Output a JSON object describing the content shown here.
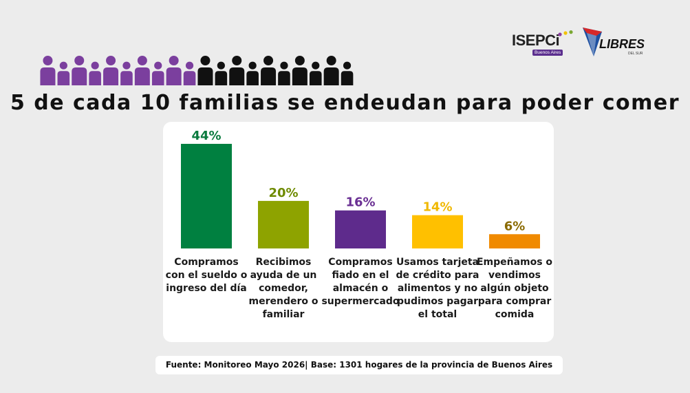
{
  "header": {
    "title": "5 de cada 10 familias se endeudan para poder comer",
    "people_icons": {
      "total": 20,
      "highlighted": 10,
      "highlight_color": "#7b3f9e",
      "base_color": "#111111"
    }
  },
  "logos": {
    "isepci": {
      "name": "ISEPCi",
      "subtitle": "Buenos Aires",
      "colors": [
        "#8a3fa0",
        "#f2c200",
        "#7aa832"
      ]
    },
    "libres": {
      "name": "LIBRES",
      "subtitle": "DEL SUR",
      "colors": [
        "#d62828",
        "#1d4fa0"
      ]
    }
  },
  "chart_data": {
    "type": "bar",
    "categories": [
      "Compramos con el sueldo o ingreso del día",
      "Recibimos ayuda de un comedor, merendero o familiar",
      "Compramos fiado en el almacén o supermercado",
      "Usamos tarjeta de crédito para alimentos y no pudimos pagar el total",
      "Empeñamos o vendimos algún objeto para comprar comida"
    ],
    "category_lines": [
      [
        "Compramos",
        "con el sueldo o",
        "ingreso del día"
      ],
      [
        "Recibimos",
        "ayuda de un",
        "comedor,",
        "merendero o",
        "familiar"
      ],
      [
        "Compramos",
        "fiado en el",
        "almacén o",
        "supermercado"
      ],
      [
        "Usamos tarjeta",
        "de crédito para",
        "alimentos y no",
        "pudimos pagar",
        "el total"
      ],
      [
        "Empeñamos o",
        "vendimos",
        "algún objeto",
        "para comprar",
        "comida"
      ]
    ],
    "values": [
      44,
      20,
      16,
      14,
      6
    ],
    "value_labels": [
      "44%",
      "20%",
      "16%",
      "14%",
      "6%"
    ],
    "colors": [
      "#008040",
      "#8ea300",
      "#5e2b8c",
      "#ffc000",
      "#f08a00"
    ],
    "label_colors": [
      "#0a7a3e",
      "#6e8a00",
      "#6a2f93",
      "#f0b800",
      "#8a6a00"
    ],
    "ylim": [
      0,
      44
    ],
    "grid": false,
    "legend": "none"
  },
  "footer": {
    "source": "Fuente: Monitoreo Mayo 2026| Base: 1301 hogares de la provincia de Buenos Aires"
  }
}
